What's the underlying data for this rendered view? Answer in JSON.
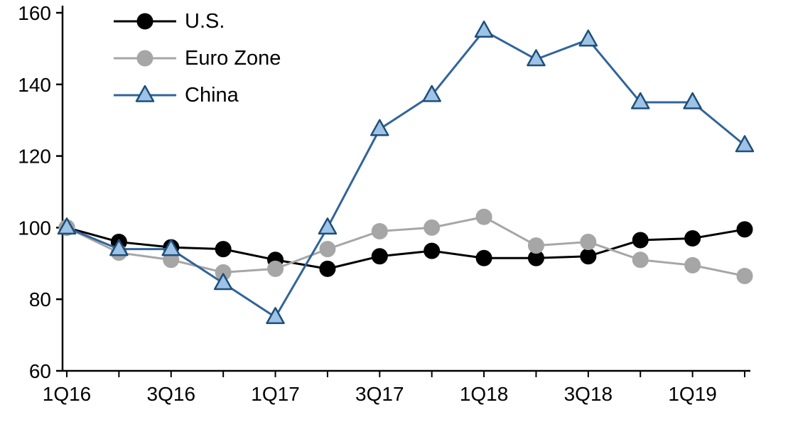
{
  "chart_data": {
    "type": "line",
    "title": "",
    "xlabel": "",
    "ylabel": "",
    "grid": false,
    "legend_position": "top-left",
    "ylim": [
      60,
      160
    ],
    "y_ticks": [
      60,
      80,
      100,
      120,
      140,
      160
    ],
    "x": [
      "1Q16",
      "2Q16",
      "3Q16",
      "4Q16",
      "1Q17",
      "2Q17",
      "3Q17",
      "4Q17",
      "1Q18",
      "2Q18",
      "3Q18",
      "4Q18",
      "1Q19",
      "2Q19"
    ],
    "x_tick_labels": [
      "1Q16",
      "3Q16",
      "1Q17",
      "3Q17",
      "1Q18",
      "3Q18",
      "1Q19"
    ],
    "x_label_indices": [
      0,
      2,
      4,
      6,
      8,
      10,
      12
    ],
    "axis_color": "#000000",
    "series": [
      {
        "name": "U.S.",
        "marker": "circle",
        "line_color": "#000000",
        "marker_fill": "#000000",
        "marker_stroke": "#000000",
        "values": [
          100,
          96,
          94.5,
          94,
          91,
          88.5,
          92,
          93.5,
          91.5,
          91.5,
          92,
          96.5,
          97,
          99.5
        ]
      },
      {
        "name": "Euro Zone",
        "marker": "circle",
        "line_color": "#a6a6a6",
        "marker_fill": "#a6a6a6",
        "marker_stroke": "#a6a6a6",
        "values": [
          100,
          93,
          91,
          87.5,
          88.5,
          94,
          99,
          100,
          103,
          95,
          96,
          91,
          89.5,
          86.5
        ]
      },
      {
        "name": "China",
        "marker": "triangle",
        "line_color": "#31649b",
        "marker_fill": "#9dc3e6",
        "marker_stroke": "#1f4e79",
        "values": [
          100,
          94,
          94,
          84.5,
          75,
          100,
          127.5,
          137,
          155,
          147,
          152.5,
          135,
          135,
          123
        ]
      }
    ]
  }
}
